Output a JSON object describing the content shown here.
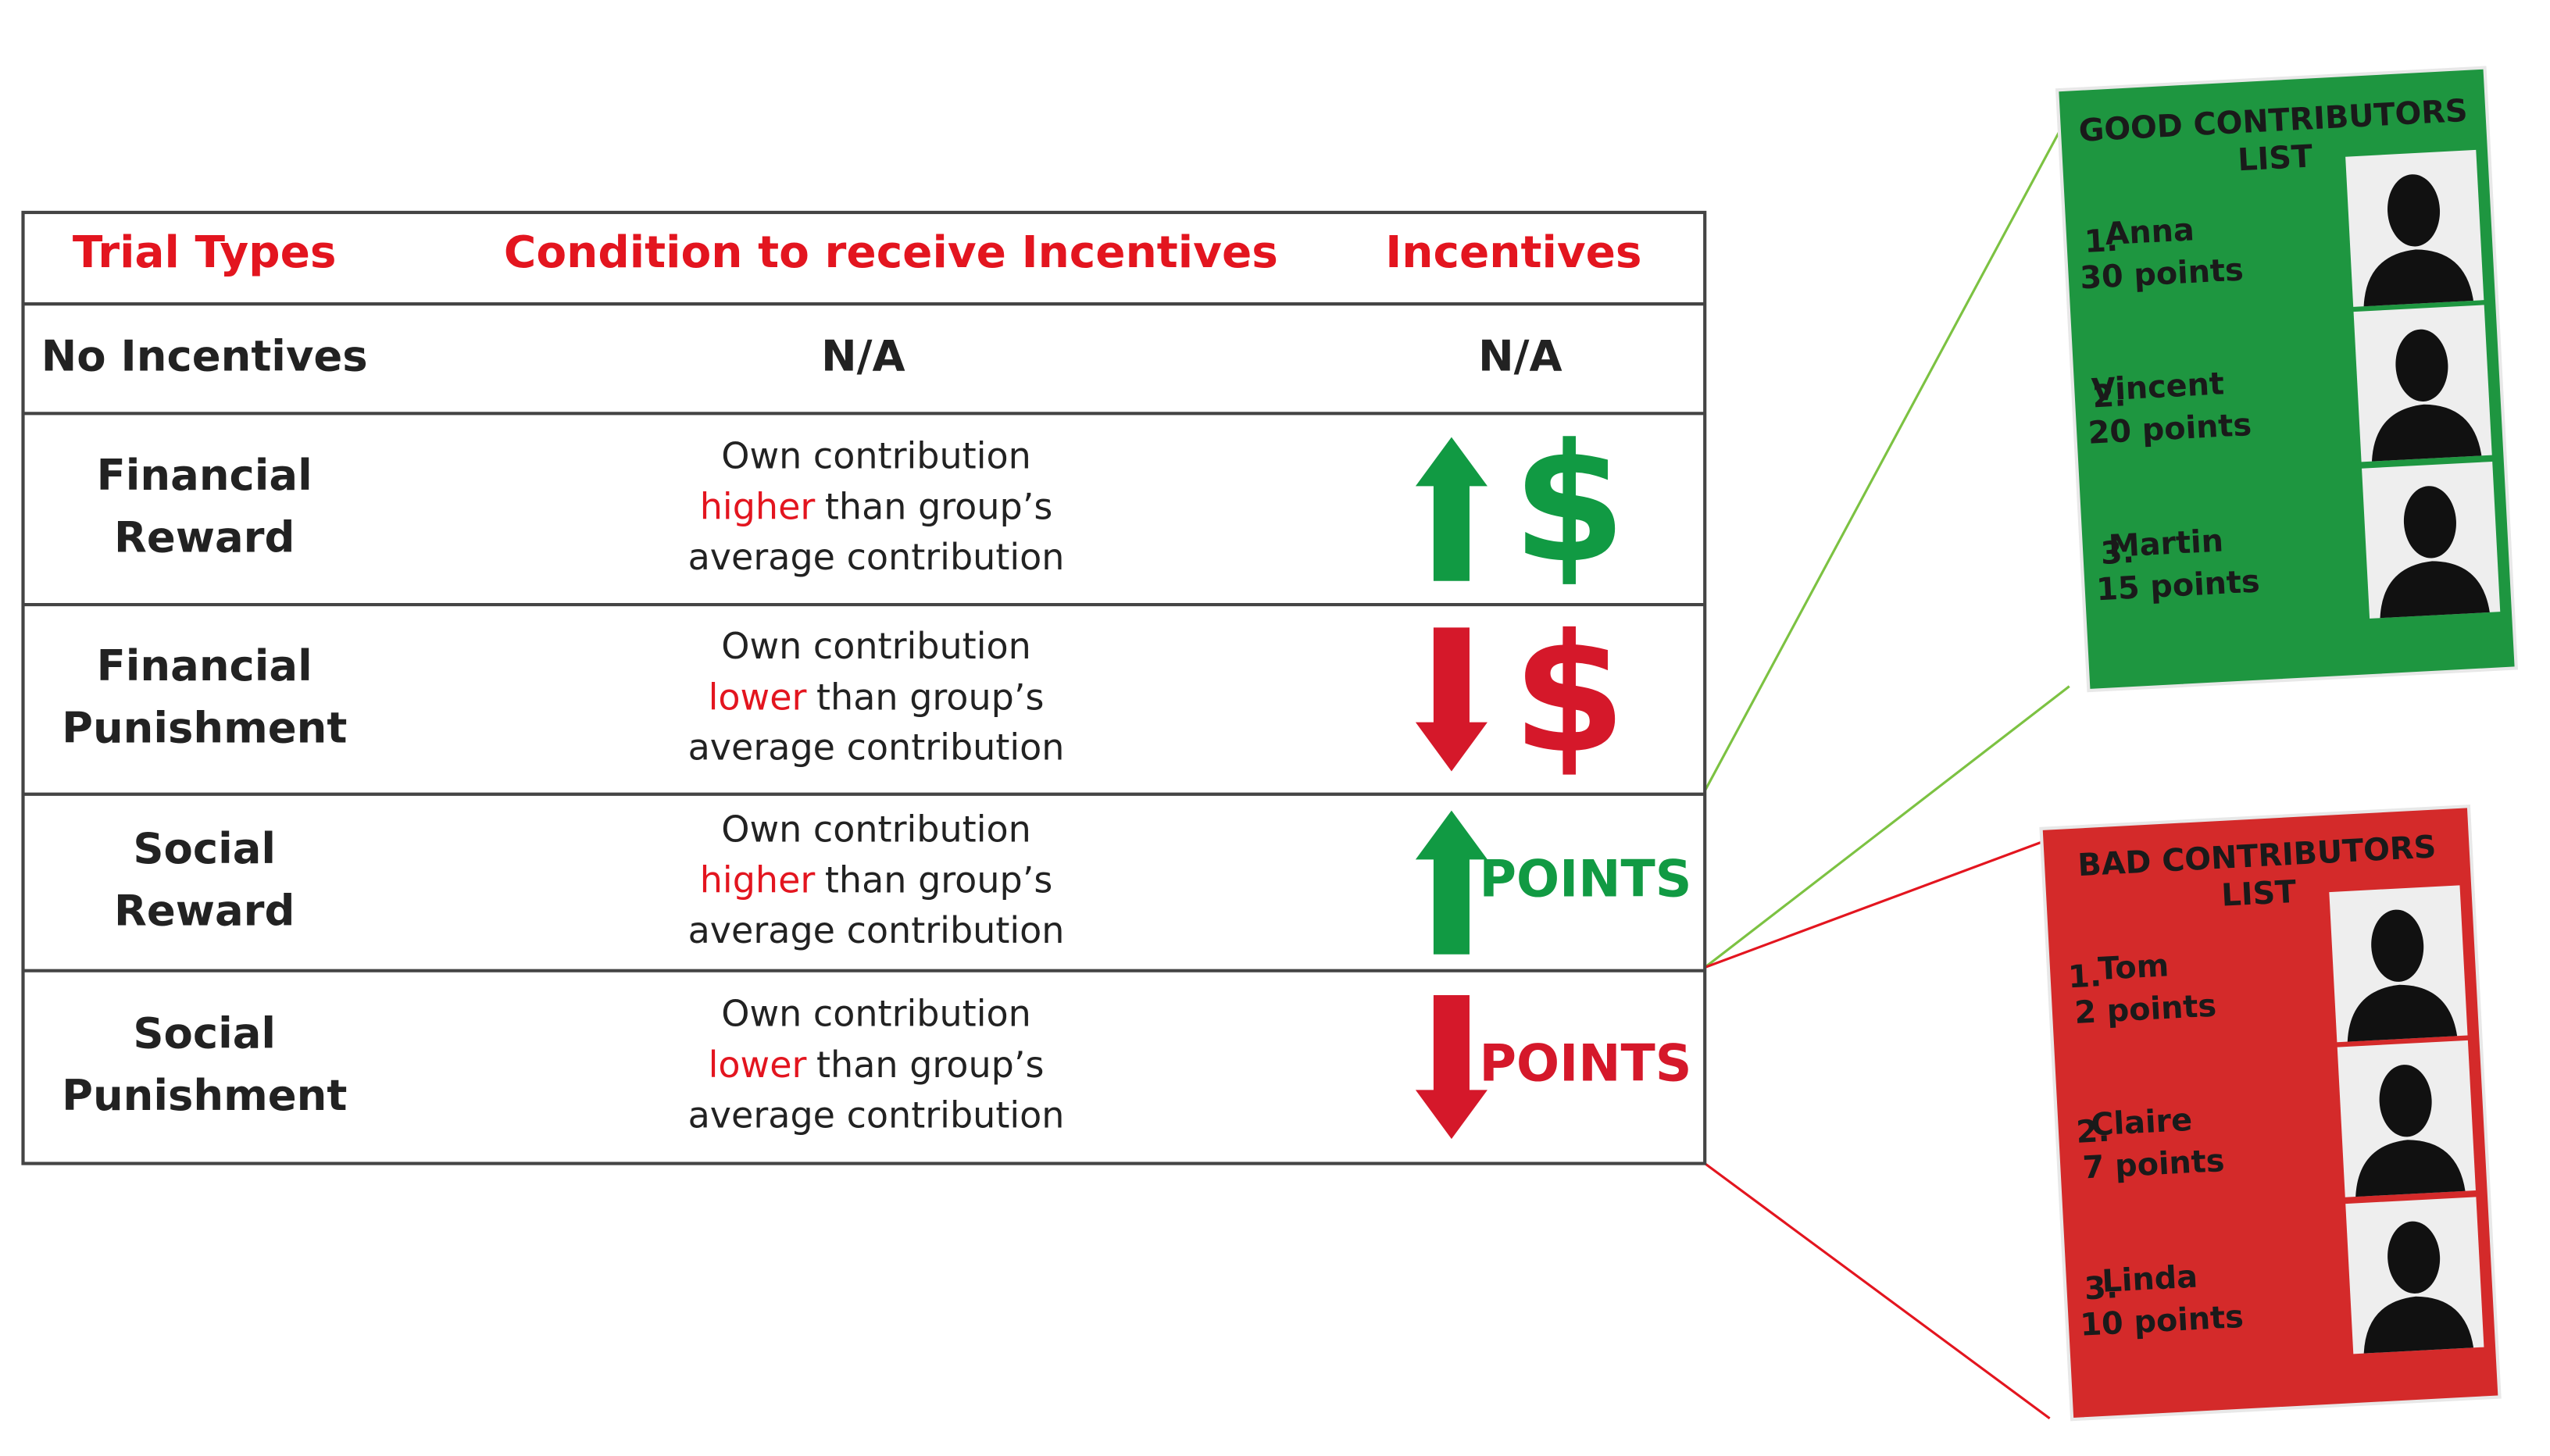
{
  "table": {
    "headers": [
      "Trial Types",
      "Condition to receive Incentives",
      "Incentives"
    ],
    "rows": [
      {
        "trial_type": [
          "No Incentives"
        ],
        "condition": "N/A",
        "incentive": "N/A"
      },
      {
        "trial_type": [
          "Financial",
          "Reward"
        ],
        "condition": {
          "first": "Own contribution",
          "highlight": "higher",
          "rest": "than group’s",
          "last": "average contribution"
        },
        "incentive": "$"
      },
      {
        "trial_type": [
          "Financial",
          "Punishment"
        ],
        "condition": {
          "first": "Own contribution",
          "highlight": "lower",
          "rest": "than group’s",
          "last": "average contribution"
        },
        "incentive": "$"
      },
      {
        "trial_type": [
          "Social",
          "Reward"
        ],
        "condition": {
          "first": "Own contribution",
          "highlight": "higher",
          "rest": "than group’s",
          "last": "average contribution"
        },
        "incentive": "POINTS"
      },
      {
        "trial_type": [
          "Social",
          "Punishment"
        ],
        "condition": {
          "first": "Own contribution",
          "highlight": "lower",
          "rest": "than group’s",
          "last": "average contribution"
        },
        "incentive": "POINTS"
      }
    ]
  },
  "lists": [
    {
      "title": [
        "GOOD CONTRIBUTORS",
        "LIST"
      ],
      "entries": [
        {
          "rank": "1.",
          "name": "Anna",
          "points": "30 points"
        },
        {
          "rank": "2.",
          "name": "Vincent",
          "points": "20 points"
        },
        {
          "rank": "3.",
          "name": "Martin",
          "points": "15 points"
        }
      ]
    },
    {
      "title": [
        "BAD CONTRIBUTORS",
        "LIST"
      ],
      "entries": [
        {
          "rank": "1.",
          "name": "Tom",
          "points": "2 points"
        },
        {
          "rank": "2.",
          "name": "Claire",
          "points": "7 points"
        },
        {
          "rank": "3.",
          "name": "Linda",
          "points": "10 points"
        }
      ]
    }
  ]
}
